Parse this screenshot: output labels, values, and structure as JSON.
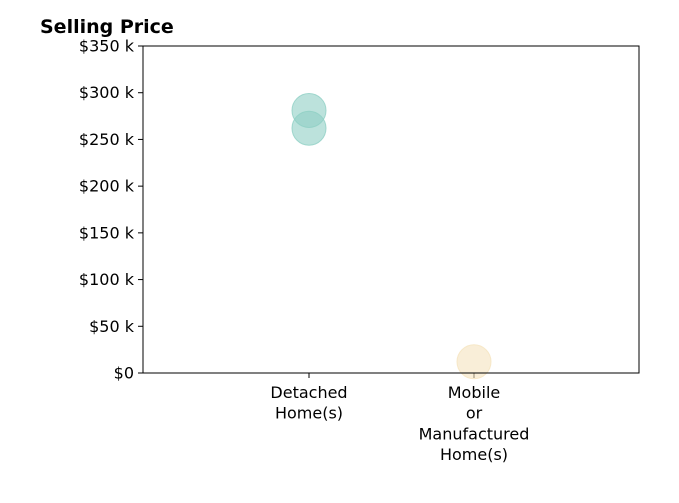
{
  "chart_data": {
    "type": "scatter",
    "title": "Selling Price",
    "categories": [
      "Detached\nHome(s)",
      "Mobile\nor\nManufactured\nHome(s)"
    ],
    "series": [
      {
        "color": "#8fcfc4",
        "points": [
          {
            "category": "Detached\nHome(s)",
            "y": 281000
          },
          {
            "category": "Detached\nHome(s)",
            "y": 262000
          }
        ]
      },
      {
        "color": "#f5e3be",
        "points": [
          {
            "category": "Mobile\nor\nManufactured\nHome(s)",
            "y": 12000
          }
        ]
      }
    ],
    "ylim": [
      0,
      350000
    ],
    "yticks": [
      0,
      50000,
      100000,
      150000,
      200000,
      250000,
      300000,
      350000
    ],
    "ytick_labels": [
      "$0",
      "$50 k",
      "$100 k",
      "$150 k",
      "$200 k",
      "$250 k",
      "$300 k",
      "$350 k"
    ],
    "grid": false,
    "xlabel": "",
    "ylabel": ""
  }
}
